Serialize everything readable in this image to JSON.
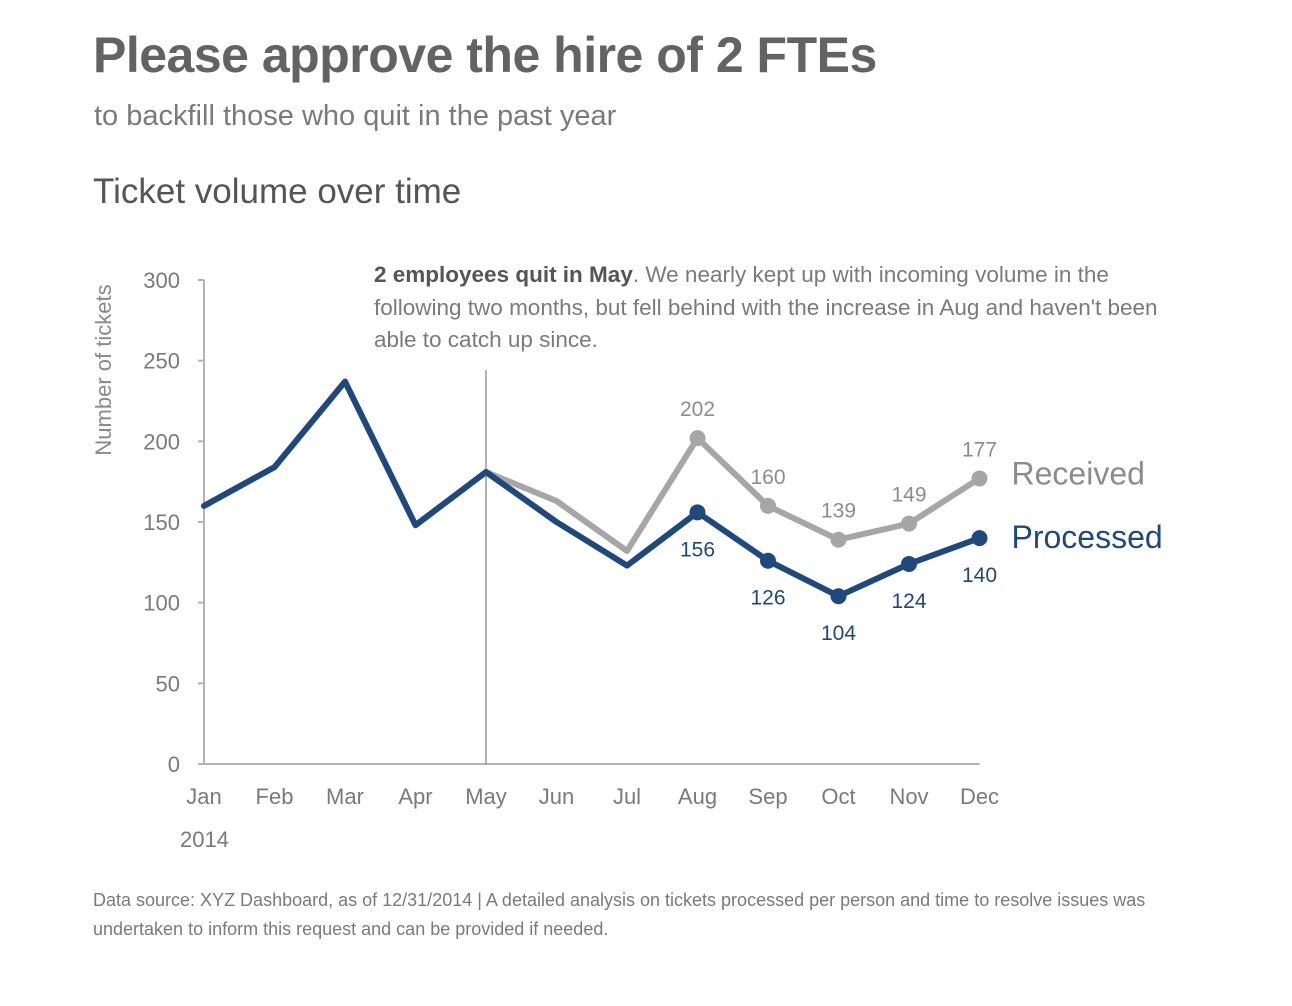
{
  "header": {
    "title": "Please approve the hire of 2 FTEs",
    "subtitle": "to backfill those who quit in the past year",
    "chart_title": "Ticket volume over time"
  },
  "annotation": {
    "bold": "2 employees quit in May",
    "text": ". We nearly kept up with incoming volume in the following two months, but fell behind with the increase in Aug and haven't been able to catch up since."
  },
  "footnote": "Data source: XYZ Dashboard, as of 12/31/2014  |  A detailed analysis on tickets processed per person and time to resolve issues was undertaken to inform this request and can be provided if needed.",
  "colors": {
    "received": "#a6a6a6",
    "processed": "#1f497d",
    "axis": "#b3b3b3",
    "text": "#7a7a7a"
  },
  "chart_data": {
    "type": "line",
    "categories": [
      "Jan",
      "Feb",
      "Mar",
      "Apr",
      "May",
      "Jun",
      "Jul",
      "Aug",
      "Sep",
      "Oct",
      "Nov",
      "Dec"
    ],
    "x_sublabel": "2014",
    "ylabel": "Number of tickets",
    "ylim": [
      0,
      300
    ],
    "yticks": [
      0,
      50,
      100,
      150,
      200,
      250,
      300
    ],
    "grid": false,
    "marker_line_category": "May",
    "series": [
      {
        "name": "Received",
        "color": "#a6a6a6",
        "values": [
          160,
          184,
          237,
          148,
          181,
          163,
          132,
          202,
          160,
          139,
          149,
          177
        ],
        "labeled_from_index": 7
      },
      {
        "name": "Processed",
        "color": "#1f497d",
        "values": [
          160,
          184,
          237,
          148,
          181,
          150,
          123,
          156,
          126,
          104,
          124,
          140
        ],
        "labeled_from_index": 7
      }
    ]
  }
}
